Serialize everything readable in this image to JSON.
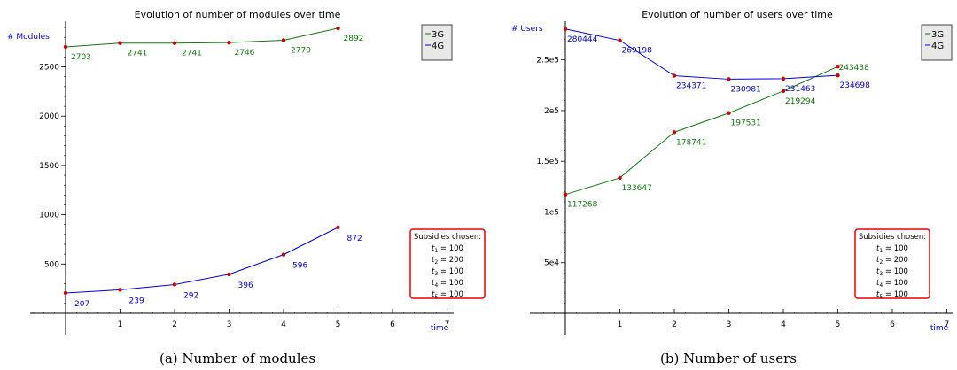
{
  "chart_data": [
    {
      "type": "line",
      "title": "Evolution of number of modules over time",
      "caption": "(a) Number of modules",
      "xlabel": "time",
      "ylabel": "# Modules",
      "xlim": [
        0,
        7
      ],
      "ylim": [
        0,
        2900
      ],
      "x_ticks": [
        1,
        2,
        3,
        4,
        5,
        6,
        7
      ],
      "y_ticks": [
        500,
        1000,
        1500,
        2000,
        2500
      ],
      "y_tick_labels": [
        "500",
        "1000",
        "1500",
        "2000",
        "2500"
      ],
      "series": [
        {
          "name": "3G",
          "color": "#117711",
          "x": [
            0,
            1,
            2,
            3,
            4,
            5
          ],
          "values": [
            2703,
            2741,
            2741,
            2746,
            2770,
            2892
          ],
          "labels": [
            "2703",
            "2741",
            "2741",
            "2746",
            "2770",
            "2892"
          ]
        },
        {
          "name": "4G",
          "color": "#0000dd",
          "x": [
            0,
            1,
            2,
            3,
            4,
            5
          ],
          "values": [
            207,
            239,
            292,
            396,
            596,
            872
          ],
          "labels": [
            "207",
            "239",
            "292",
            "396",
            "596",
            "872"
          ]
        }
      ],
      "legend_position": "top-right",
      "subsidies": {
        "title": "Subsidies chosen:",
        "items": [
          {
            "sym": "t",
            "sub": "1",
            "value": " = 100"
          },
          {
            "sym": "t",
            "sub": "2",
            "value": " = 200"
          },
          {
            "sym": "t",
            "sub": "3",
            "value": " = 100"
          },
          {
            "sym": "t",
            "sub": "4",
            "value": " = 100"
          },
          {
            "sym": "t",
            "sub": "5",
            "value": " = 100"
          }
        ]
      }
    },
    {
      "type": "line",
      "title": "Evolution of number of users over time",
      "caption": "(b) Number of users",
      "xlabel": "time",
      "ylabel": "# Users",
      "xlim": [
        0,
        7
      ],
      "ylim": [
        0,
        282000
      ],
      "x_ticks": [
        1,
        2,
        3,
        4,
        5,
        6,
        7
      ],
      "y_ticks": [
        50000,
        100000,
        150000,
        200000,
        250000
      ],
      "y_tick_labels": [
        "5e4",
        "1e5",
        "1.5e5",
        "2e5",
        "2.5e5"
      ],
      "series": [
        {
          "name": "3G",
          "color": "#117711",
          "x": [
            0,
            1,
            2,
            3,
            4,
            5
          ],
          "values": [
            117268,
            133647,
            178741,
            197531,
            219294,
            243438
          ],
          "labels": [
            "117268",
            "133647",
            "178741",
            "197531",
            "219294",
            "243438"
          ]
        },
        {
          "name": "4G",
          "color": "#0000dd",
          "x": [
            0,
            1,
            2,
            3,
            4,
            5
          ],
          "values": [
            280444,
            269198,
            234371,
            230981,
            231463,
            234698
          ],
          "labels": [
            "280444",
            "269198",
            "234371",
            "230981",
            "231463",
            "234698"
          ]
        }
      ],
      "legend_position": "top-right",
      "subsidies": {
        "title": "Subsidies chosen:",
        "items": [
          {
            "sym": "t",
            "sub": "1",
            "value": " = 100"
          },
          {
            "sym": "t",
            "sub": "2",
            "value": " = 200"
          },
          {
            "sym": "t",
            "sub": "3",
            "value": " = 100"
          },
          {
            "sym": "t",
            "sub": "4",
            "value": " = 100"
          },
          {
            "sym": "t",
            "sub": "5",
            "value": " = 100"
          }
        ]
      }
    }
  ]
}
